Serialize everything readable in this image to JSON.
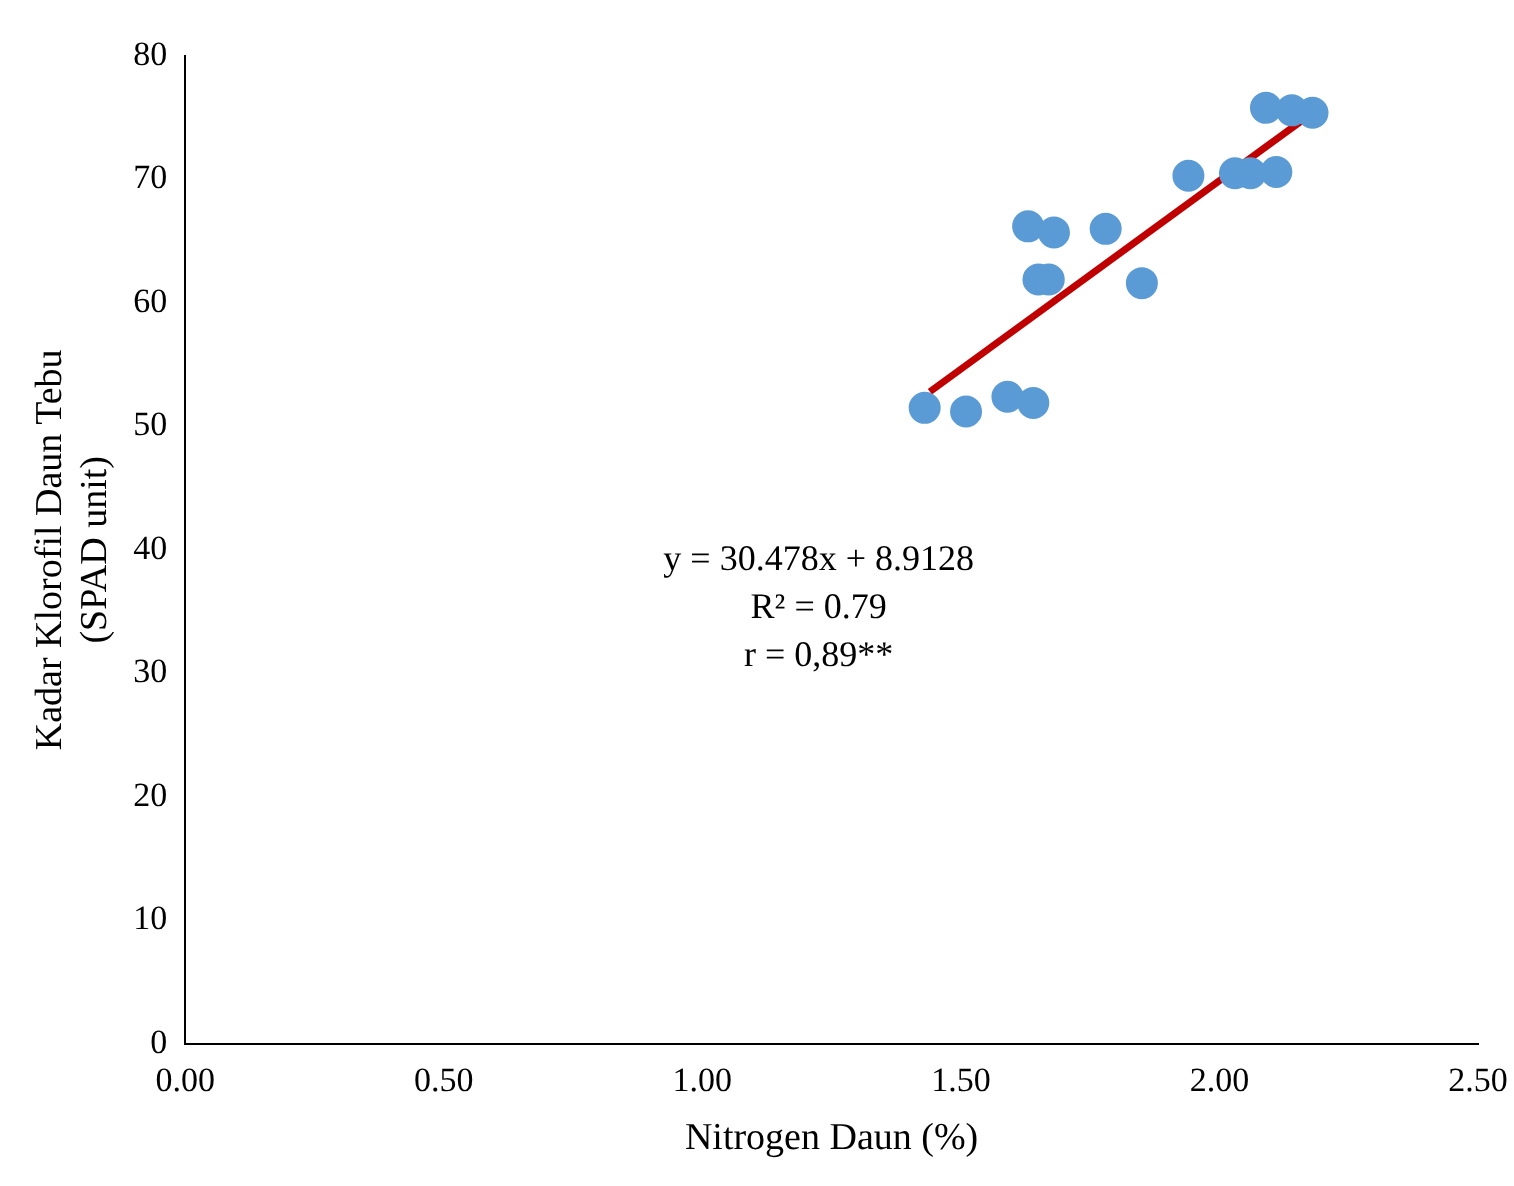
{
  "chart_data": {
    "type": "scatter",
    "xlabel": "Nitrogen Daun (%)",
    "ylabel": "Kadar Klorofil Daun Tebu\n(SPAD unit)",
    "xlim": [
      0,
      2.5
    ],
    "xticks": [
      {
        "value": 0,
        "label": "0.00"
      },
      {
        "value": 0.5,
        "label": "0.50"
      },
      {
        "value": 1,
        "label": "1.00"
      },
      {
        "value": 1.5,
        "label": "1.50"
      },
      {
        "value": 2,
        "label": "2.00"
      },
      {
        "value": 2.5,
        "label": "2.50"
      }
    ],
    "ylim": [
      0,
      80
    ],
    "yticks": [
      0,
      10,
      20,
      30,
      40,
      50,
      60,
      70,
      80
    ],
    "grid": false,
    "legend": false,
    "series": [
      {
        "marker": "circle",
        "color": "#5b9bd5",
        "x": [
          1.43,
          1.51,
          1.59,
          1.64,
          1.63,
          1.68,
          1.78,
          1.65,
          1.67,
          1.85,
          1.94,
          2.03,
          2.06,
          2.11,
          2.09,
          2.14,
          2.18
        ],
        "values": [
          51.5,
          51.2,
          52.4,
          51.9,
          66.2,
          65.7,
          66,
          61.9,
          61.9,
          61.6,
          70.3,
          70.5,
          70.5,
          70.6,
          75.8,
          75.6,
          75.4
        ]
      },
      {
        "type": "line",
        "marker": "none",
        "color": "#c00000",
        "x": [
          1.44,
          2.19
        ],
        "values": [
          52.8,
          75.7
        ]
      }
    ],
    "annotations": [
      "y = 30.478x + 8.9128",
      "R² = 0.79",
      "r = 0,89**"
    ]
  }
}
